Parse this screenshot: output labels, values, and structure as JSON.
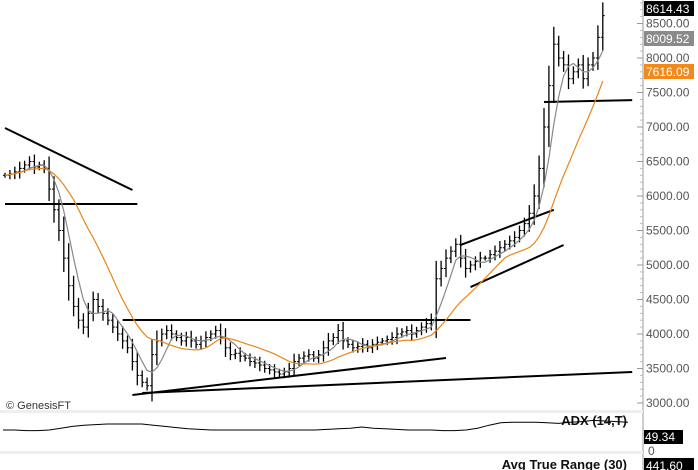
{
  "chart_data": {
    "type": "ohlc-bar",
    "title": "",
    "watermark": "© GenesisFT",
    "ylim": [
      2900,
      8750
    ],
    "yticks": [
      "3000.00",
      "3500.00",
      "4000.00",
      "4500.00",
      "5000.00",
      "5500.00",
      "6000.00",
      "6500.00",
      "7000.00",
      "7500.00",
      "8000.00",
      "8500.00"
    ],
    "ytick_values": [
      3000,
      3500,
      4000,
      4500,
      5000,
      5500,
      6000,
      6500,
      7000,
      7500,
      8000,
      8500
    ],
    "closes": [
      6300,
      6320,
      6350,
      6400,
      6450,
      6500,
      6420,
      6450,
      6400,
      6100,
      5800,
      5500,
      5100,
      4700,
      4400,
      4200,
      4100,
      4300,
      4500,
      4400,
      4300,
      4200,
      4100,
      4000,
      3900,
      3800,
      3600,
      3400,
      3300,
      3250,
      3700,
      3900,
      4000,
      4050,
      4000,
      3950,
      3900,
      3950,
      3900,
      3850,
      3900,
      3950,
      4000,
      4050,
      3950,
      3800,
      3700,
      3720,
      3680,
      3650,
      3600,
      3580,
      3550,
      3500,
      3480,
      3450,
      3420,
      3450,
      3500,
      3600,
      3650,
      3680,
      3700,
      3650,
      3700,
      3800,
      3900,
      3950,
      4050,
      3900,
      3850,
      3800,
      3820,
      3850,
      3800,
      3850,
      3880,
      3900,
      3920,
      3950,
      4000,
      4030,
      4050,
      4000,
      4050,
      4100,
      4150,
      4200,
      4800,
      4950,
      5100,
      5200,
      5300,
      5100,
      4950,
      5000,
      5050,
      5100,
      5100,
      5150,
      5200,
      5250,
      5300,
      5350,
      5400,
      5500,
      5600,
      5750,
      6000,
      6400,
      7000,
      7600,
      8200,
      8000,
      7900,
      7700,
      7800,
      7900,
      7700,
      7900,
      8000,
      8300,
      8614
    ],
    "series": [
      {
        "name": "Price",
        "color": "#000000"
      },
      {
        "name": "Fast MA",
        "color": "#888888",
        "period": 5,
        "last": 8009.52
      },
      {
        "name": "Slow MA",
        "color": "#e8861a",
        "period": 15,
        "last": 7616.09
      }
    ],
    "trendlines": [
      {
        "from": [
          0,
          6985
        ],
        "to": [
          26,
          6087
        ]
      },
      {
        "from": [
          0,
          5884
        ],
        "to": [
          27,
          5884
        ]
      },
      {
        "from": [
          24,
          4203
        ],
        "to": [
          95,
          4203
        ]
      },
      {
        "from": [
          26,
          3116
        ],
        "to": [
          90,
          3652
        ]
      },
      {
        "from": [
          28,
          3145
        ],
        "to": [
          128,
          3450
        ]
      },
      {
        "from": [
          93,
          5290
        ],
        "to": [
          112,
          5800
        ]
      },
      {
        "from": [
          95,
          4680
        ],
        "to": [
          114,
          5290
        ]
      },
      {
        "from": [
          110,
          7362
        ],
        "to": [
          128,
          7390
        ]
      }
    ],
    "last_price": "8614.43",
    "fast_ma_label": "8009.52",
    "slow_ma_label": "7616.09",
    "indicators": [
      {
        "name": "ADX (14,T)",
        "value": "49.34",
        "zero": "0",
        "values": [
          30,
          30,
          29,
          29,
          30,
          33,
          36,
          38,
          39,
          40,
          40,
          40,
          40,
          38,
          36,
          34,
          32,
          31,
          30,
          30,
          30,
          30,
          30,
          30,
          30,
          30,
          30,
          30,
          31,
          32,
          33,
          35,
          33,
          32,
          31,
          30,
          30,
          30,
          29,
          29,
          30,
          33,
          38,
          42,
          43,
          43,
          43,
          42,
          41,
          43,
          44,
          46,
          45,
          44,
          43
        ]
      },
      {
        "name": "Avg True Range (30)",
        "value": "441.60"
      }
    ]
  }
}
